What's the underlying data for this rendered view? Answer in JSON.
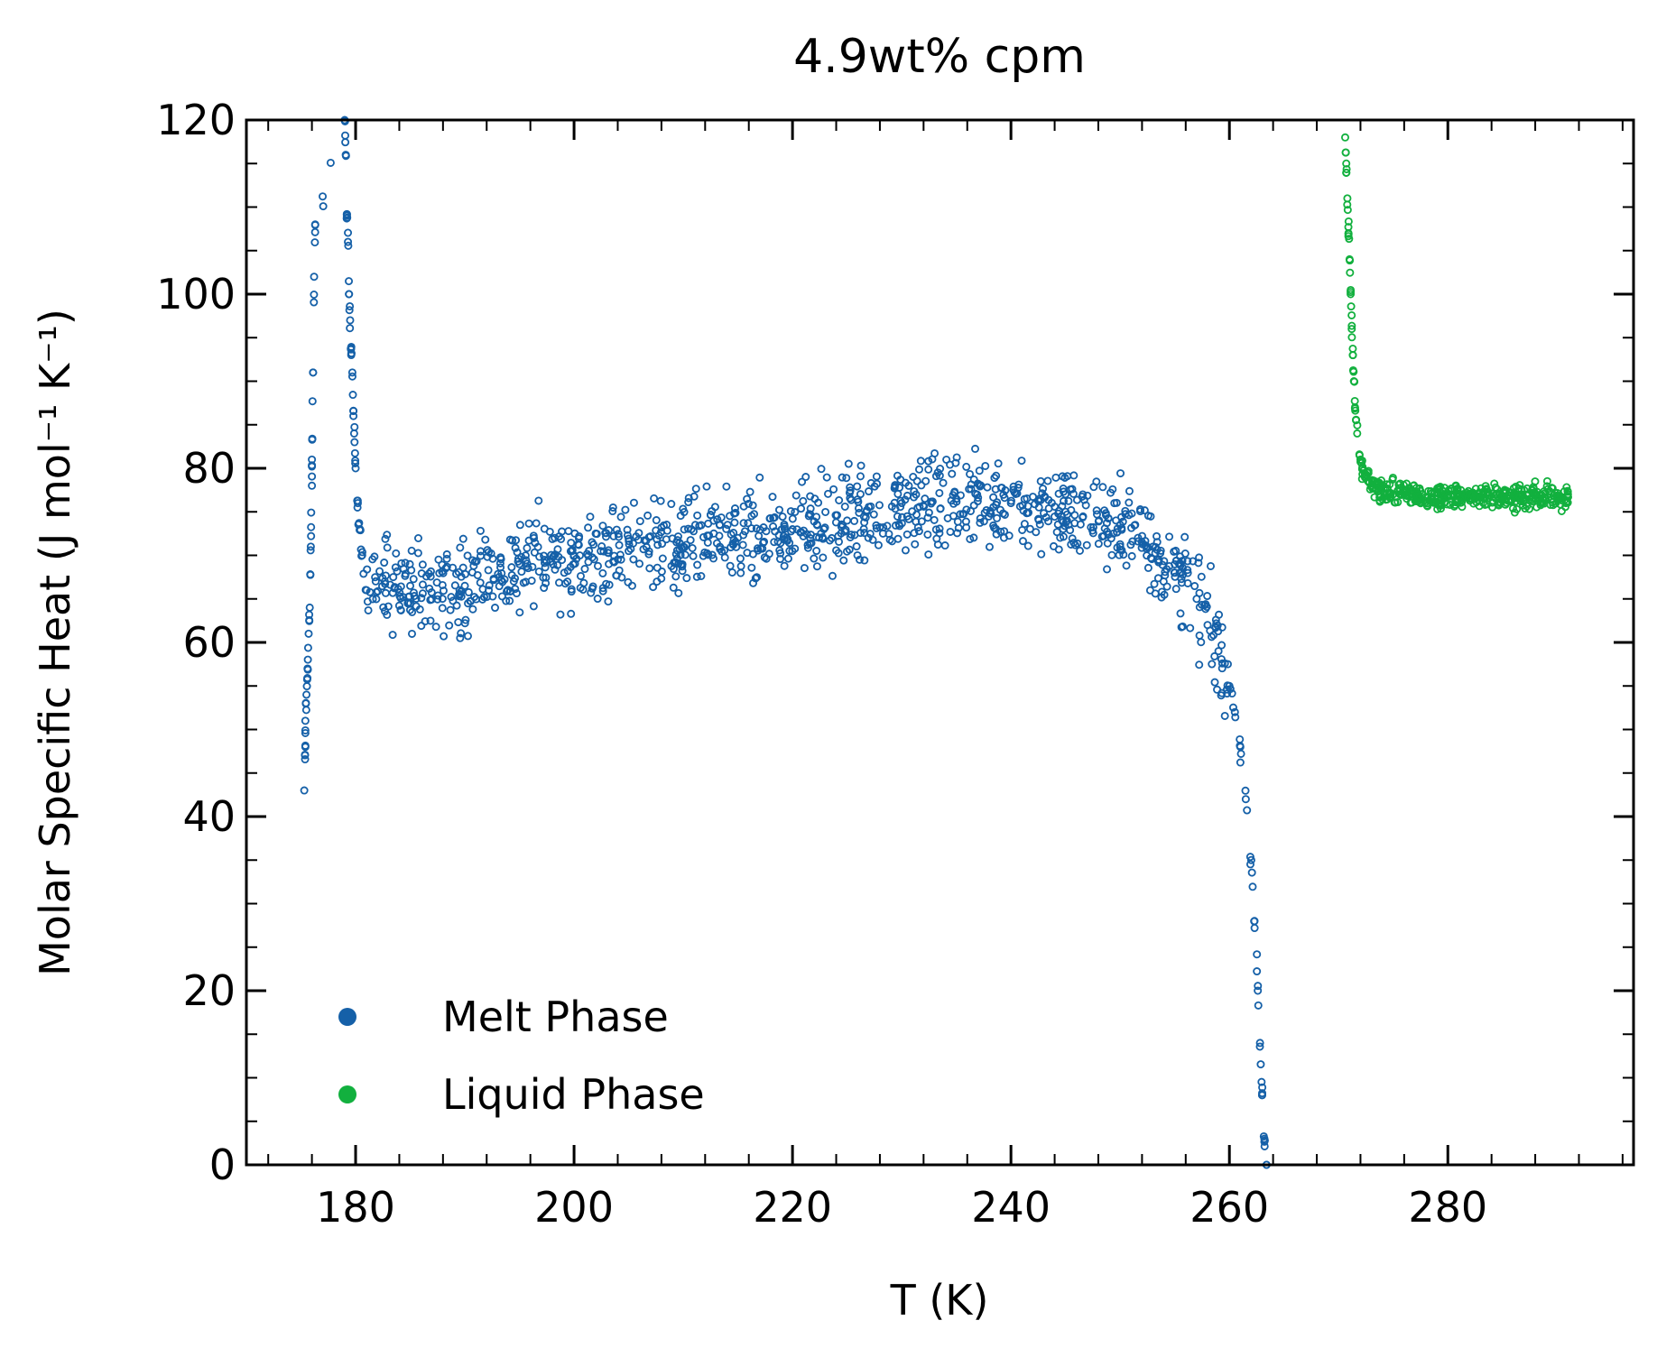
{
  "chart_data": {
    "type": "scatter",
    "title": "4.9wt% cpm",
    "xlabel": "T (K)",
    "ylabel": "Molar Specific Heat (J mol⁻¹ K⁻¹)",
    "xlim": [
      170,
      297
    ],
    "ylim": [
      0,
      120
    ],
    "xticks": [
      180,
      200,
      220,
      240,
      260,
      280
    ],
    "yticks": [
      0,
      20,
      40,
      60,
      80,
      100,
      120
    ],
    "grid": false,
    "legend_position": "bottom-left",
    "series": [
      {
        "name": "Melt Phase",
        "color": "#1560a8",
        "marker": "open-circle",
        "profile": [
          {
            "x": 175.3,
            "y": 43
          },
          {
            "x": 175.4,
            "y": 48
          },
          {
            "x": 175.4,
            "y": 51
          },
          {
            "x": 175.5,
            "y": 54
          },
          {
            "x": 175.6,
            "y": 57
          },
          {
            "x": 175.7,
            "y": 61
          },
          {
            "x": 175.8,
            "y": 64
          },
          {
            "x": 175.9,
            "y": 71
          },
          {
            "x": 176.0,
            "y": 78
          },
          {
            "x": 176.0,
            "y": 81
          },
          {
            "x": 176.1,
            "y": 91
          },
          {
            "x": 176.2,
            "y": 102
          },
          {
            "x": 176.3,
            "y": 108
          },
          {
            "x": 179.0,
            "y": 120
          },
          {
            "x": 179.1,
            "y": 116
          },
          {
            "x": 179.2,
            "y": 109
          },
          {
            "x": 179.3,
            "y": 106
          },
          {
            "x": 179.4,
            "y": 100
          },
          {
            "x": 179.5,
            "y": 97
          },
          {
            "x": 179.6,
            "y": 93
          },
          {
            "x": 179.7,
            "y": 91
          },
          {
            "x": 179.8,
            "y": 86
          },
          {
            "x": 179.9,
            "y": 83
          },
          {
            "x": 180.0,
            "y": 80
          },
          {
            "x": 180.2,
            "y": 76
          },
          {
            "x": 180.4,
            "y": 73
          },
          {
            "x": 180.6,
            "y": 70
          },
          {
            "x": 181,
            "y": 66
          },
          {
            "x": 185,
            "y": 66.5
          },
          {
            "x": 190,
            "y": 66.5
          },
          {
            "x": 195,
            "y": 69
          },
          {
            "x": 200,
            "y": 70
          },
          {
            "x": 205,
            "y": 70.5
          },
          {
            "x": 210,
            "y": 71
          },
          {
            "x": 215,
            "y": 72
          },
          {
            "x": 220,
            "y": 73
          },
          {
            "x": 225,
            "y": 74
          },
          {
            "x": 230,
            "y": 76
          },
          {
            "x": 235,
            "y": 76.5
          },
          {
            "x": 240,
            "y": 76
          },
          {
            "x": 245,
            "y": 75
          },
          {
            "x": 250,
            "y": 73.5
          },
          {
            "x": 253,
            "y": 71
          },
          {
            "x": 255,
            "y": 68
          },
          {
            "x": 257,
            "y": 65
          },
          {
            "x": 258,
            "y": 62
          },
          {
            "x": 259,
            "y": 59
          },
          {
            "x": 260,
            "y": 55
          },
          {
            "x": 260.5,
            "y": 52
          },
          {
            "x": 261,
            "y": 48
          },
          {
            "x": 261.5,
            "y": 42
          },
          {
            "x": 262,
            "y": 35
          },
          {
            "x": 262.3,
            "y": 28
          },
          {
            "x": 262.6,
            "y": 20
          },
          {
            "x": 262.8,
            "y": 14
          },
          {
            "x": 263.0,
            "y": 8
          },
          {
            "x": 263.2,
            "y": 3
          },
          {
            "x": 263.4,
            "y": 0
          }
        ]
      },
      {
        "name": "Liquid Phase",
        "color": "#12b03e",
        "marker": "open-circle",
        "profile": [
          {
            "x": 270.6,
            "y": 118
          },
          {
            "x": 270.7,
            "y": 115
          },
          {
            "x": 270.8,
            "y": 111
          },
          {
            "x": 270.9,
            "y": 107
          },
          {
            "x": 271.0,
            "y": 104
          },
          {
            "x": 271.1,
            "y": 100
          },
          {
            "x": 271.2,
            "y": 96
          },
          {
            "x": 271.3,
            "y": 93
          },
          {
            "x": 271.4,
            "y": 90
          },
          {
            "x": 271.5,
            "y": 87
          },
          {
            "x": 271.7,
            "y": 84
          },
          {
            "x": 272.0,
            "y": 81
          },
          {
            "x": 272.5,
            "y": 79
          },
          {
            "x": 273,
            "y": 78
          },
          {
            "x": 276,
            "y": 77
          },
          {
            "x": 280,
            "y": 76.8
          },
          {
            "x": 285,
            "y": 76.6
          },
          {
            "x": 291,
            "y": 76.7
          }
        ]
      }
    ]
  }
}
